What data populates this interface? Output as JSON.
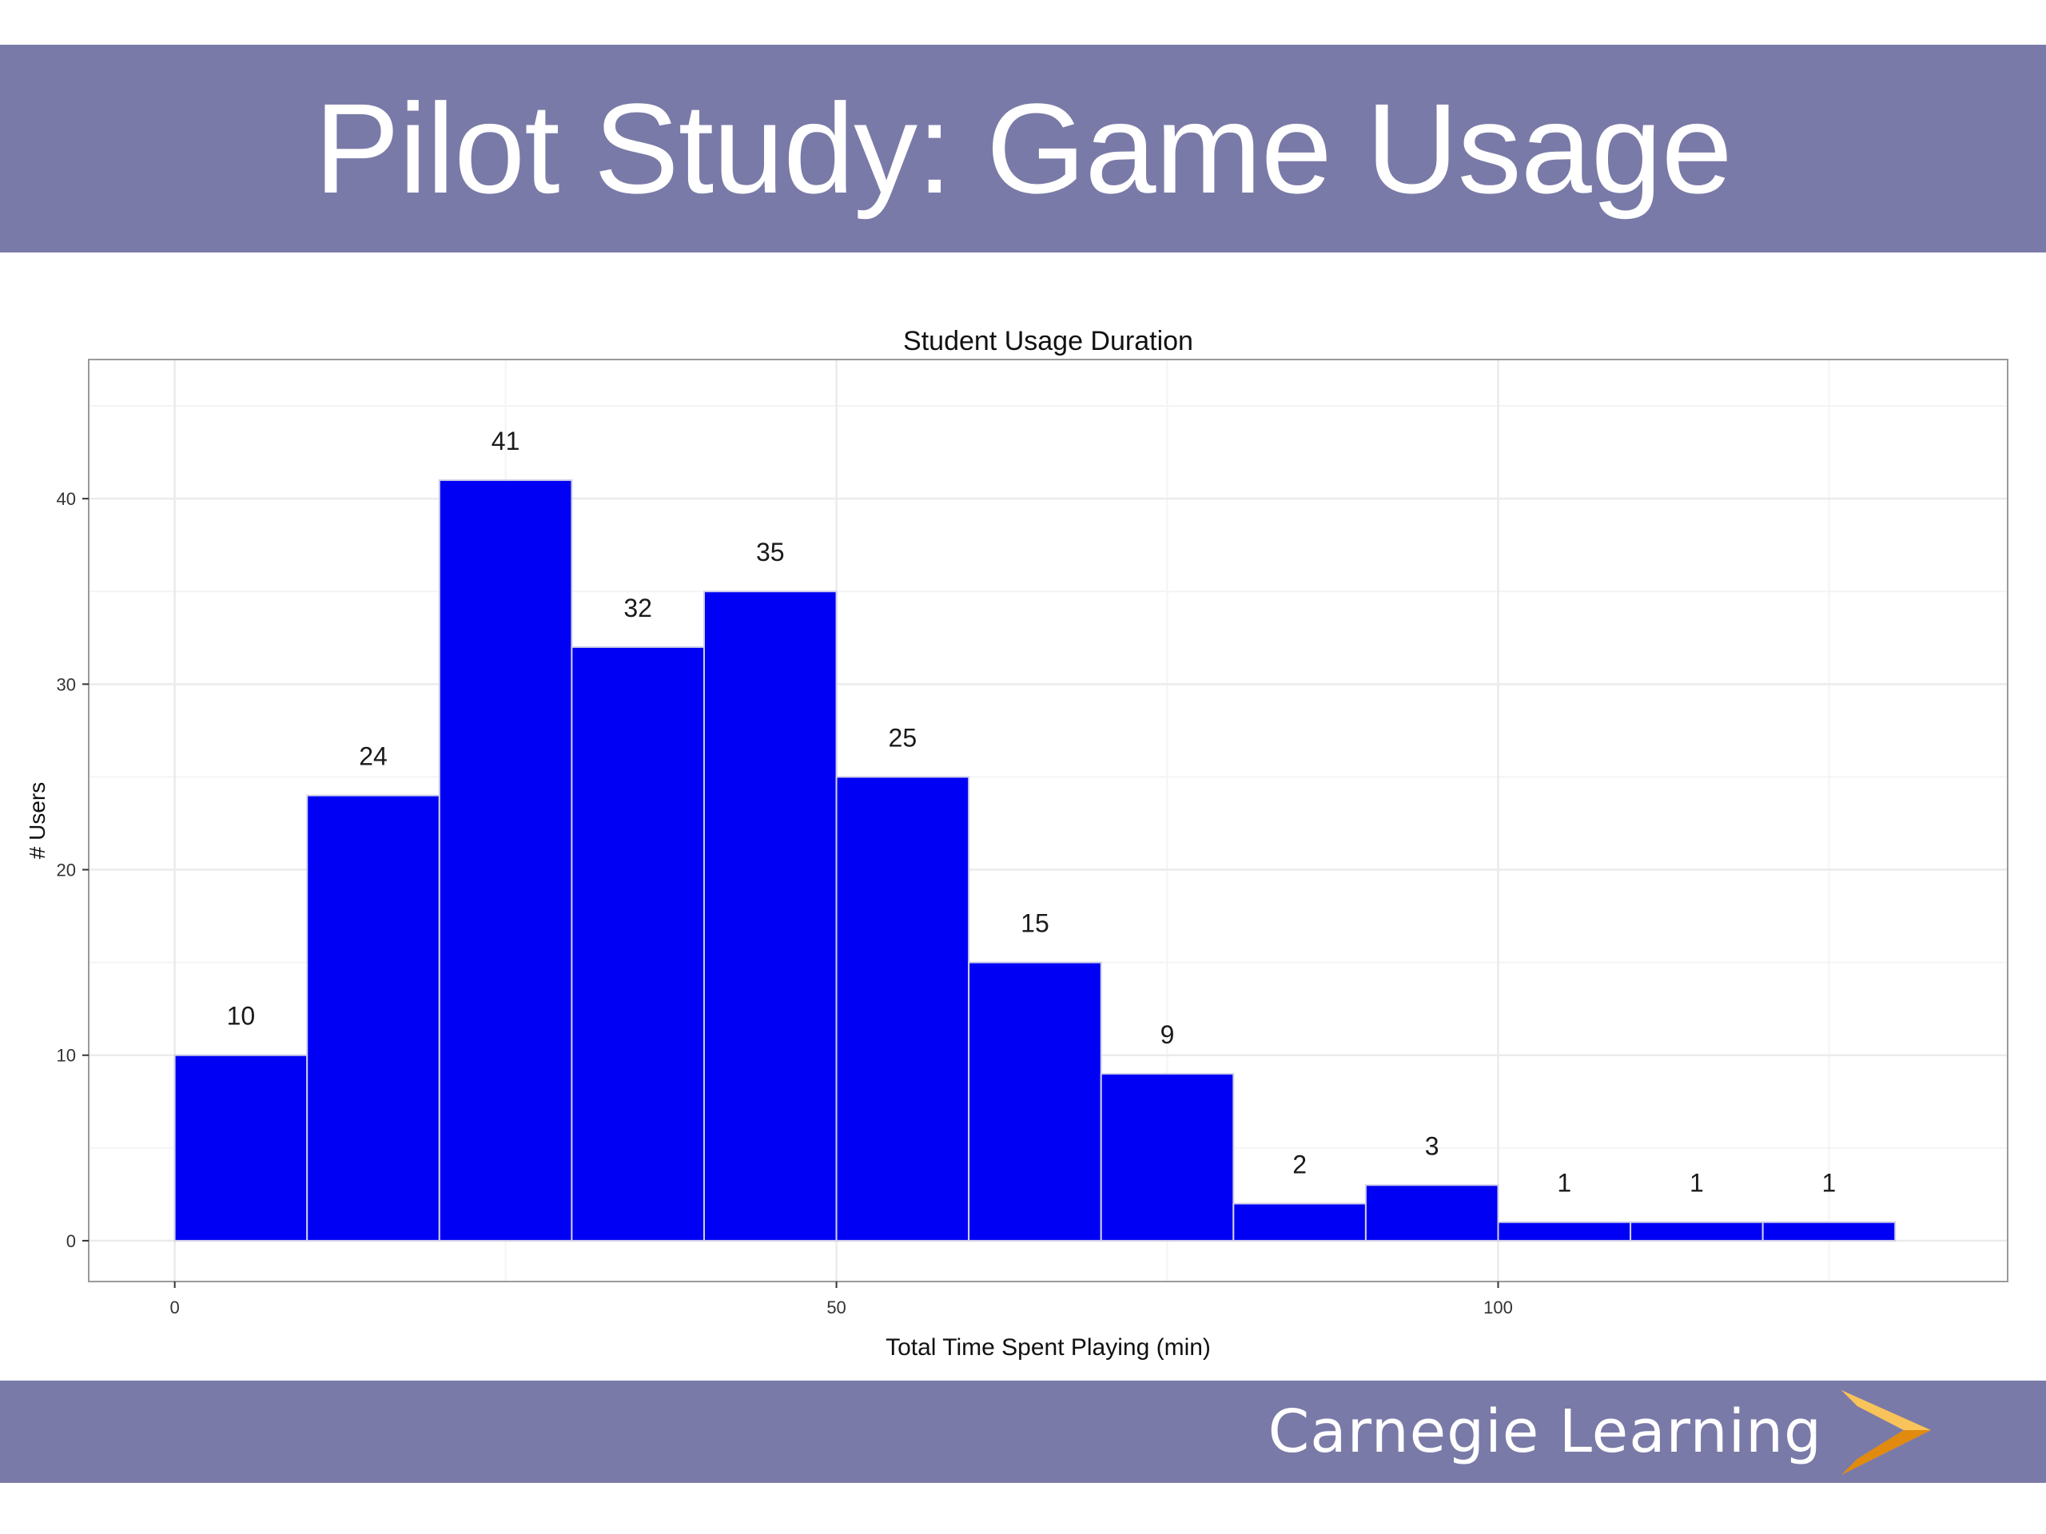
{
  "slide": {
    "title": "Pilot Study: Game Usage",
    "brand": "Carnegie Learning",
    "colors": {
      "banner": "#7a7aa8",
      "bar_fill": "#0000f5",
      "bar_edge": "#d0d0e8",
      "brand_mark": "#f5a623"
    }
  },
  "chart_data": {
    "type": "bar",
    "title": "Student Usage Duration",
    "xlabel": "Total Time Spent Playing (min)",
    "ylabel": "# Users",
    "bin_width": 10,
    "x": [
      0,
      10,
      20,
      30,
      40,
      50,
      60,
      70,
      80,
      90,
      100,
      110,
      120
    ],
    "values": [
      10,
      24,
      41,
      32,
      35,
      25,
      15,
      9,
      2,
      3,
      1,
      1,
      1
    ],
    "xlim": [
      -6.5,
      138.5
    ],
    "ylim": [
      -2.2,
      47.5
    ],
    "x_ticks": [
      0,
      50,
      100
    ],
    "y_ticks": [
      0,
      10,
      20,
      30,
      40
    ],
    "grid": true,
    "legend": "none"
  }
}
